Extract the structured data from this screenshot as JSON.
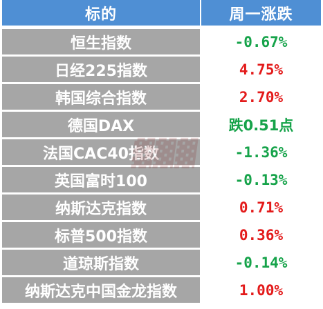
{
  "table": {
    "header": {
      "col1": "标的",
      "col2": "周一涨跌"
    },
    "rows": [
      {
        "name": "恒生指数",
        "change": "-0.67%",
        "direction": "down"
      },
      {
        "name": "日经225指数",
        "change": "4.75%",
        "direction": "up"
      },
      {
        "name": "韩国综合指数",
        "change": "2.70%",
        "direction": "up"
      },
      {
        "name": "德国DAX",
        "change": "跌0.51点",
        "direction": "down"
      },
      {
        "name": "法国CAC40指数",
        "change": "-1.36%",
        "direction": "down"
      },
      {
        "name": "英国富时100",
        "change": "-0.13%",
        "direction": "down"
      },
      {
        "name": "纳斯达克指数",
        "change": "0.71%",
        "direction": "up"
      },
      {
        "name": "标普500指数",
        "change": "0.36%",
        "direction": "up"
      },
      {
        "name": "道琼斯指数",
        "change": "-0.14%",
        "direction": "down"
      },
      {
        "name": "纳斯达克中国金龙指数",
        "change": "1.00%",
        "direction": "up"
      }
    ]
  },
  "colors": {
    "header_bg": "#4f8fd4",
    "name_bg": "#a6a6a6",
    "up": "#e31b1b",
    "down": "#16a34a"
  }
}
